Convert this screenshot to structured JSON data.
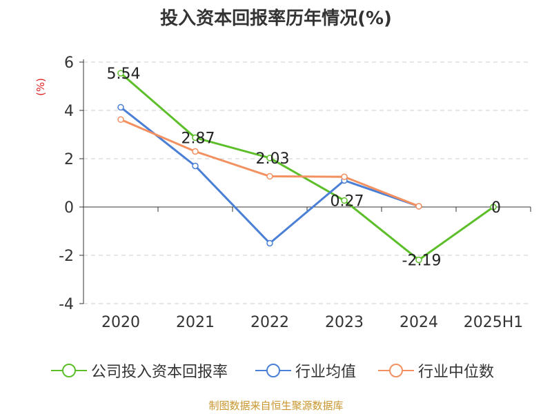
{
  "chart_data": {
    "type": "line",
    "title": "投入资本回报率历年情况(%)",
    "ylabel": "(%)",
    "xlabel": "",
    "categories": [
      "2020",
      "2021",
      "2022",
      "2023",
      "2024",
      "2025H1"
    ],
    "ylim": [
      -4,
      6
    ],
    "yticks": [
      6,
      4,
      2,
      0,
      -2,
      -4
    ],
    "grid": true,
    "legend_position": "bottom",
    "series": [
      {
        "name": "公司投入资本回报率",
        "color": "#5cbf2a",
        "values": [
          5.54,
          2.87,
          2.03,
          0.27,
          -2.19,
          0
        ],
        "labels": [
          "5.54",
          "2.87",
          "2.03",
          "0.27",
          "-2.19",
          "0"
        ]
      },
      {
        "name": "行业均值",
        "color": "#4a7fd6",
        "values": [
          4.13,
          1.7,
          -1.5,
          1.1,
          0.03,
          null
        ]
      },
      {
        "name": "行业中位数",
        "color": "#f39060",
        "values": [
          3.62,
          2.3,
          1.27,
          1.25,
          0.03,
          null
        ]
      }
    ]
  },
  "source": "制图数据来自恒生聚源数据库"
}
